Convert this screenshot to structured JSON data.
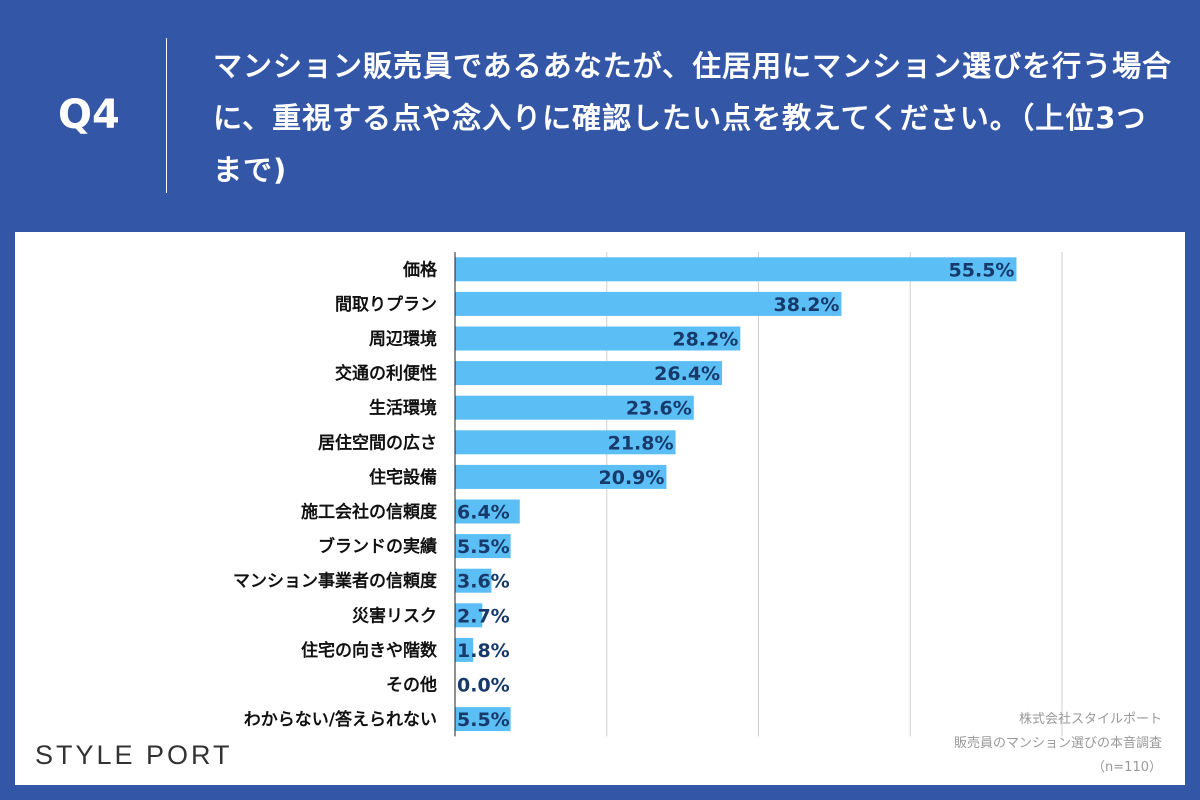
{
  "header": {
    "qnum": "Q4",
    "question": "マンション販売員であるあなたが、住居用にマンション選びを行う場合に、重視する点や念入りに確認したい点を教えてください。（上位3つまで)"
  },
  "colors": {
    "background": "#3356a7",
    "bar": "#5bbef5",
    "value_label": "#173a6b"
  },
  "chart_data": {
    "type": "bar",
    "orientation": "horizontal",
    "categories": [
      "価格",
      "間取りプラン",
      "周辺環境",
      "交通の利便性",
      "生活環境",
      "居住空間の広さ",
      "住宅設備",
      "施工会社の信頼度",
      "ブランドの実績",
      "マンション事業者の信頼度",
      "災害リスク",
      "住宅の向きや階数",
      "その他",
      "わからない/答えられない"
    ],
    "values": [
      55.5,
      38.2,
      28.2,
      26.4,
      23.6,
      21.8,
      20.9,
      6.4,
      5.5,
      3.6,
      2.7,
      1.8,
      0.0,
      5.5
    ],
    "value_labels": [
      "55.5%",
      "38.2%",
      "28.2%",
      "26.4%",
      "23.6%",
      "21.8%",
      "20.9%",
      "6.4%",
      "5.5%",
      "3.6%",
      "2.7%",
      "1.8%",
      "0.0%",
      "5.5%"
    ],
    "xlim": [
      0,
      60
    ],
    "grid": true,
    "gridlines": [
      15,
      30,
      45,
      60
    ]
  },
  "logo": "STYLE PORT",
  "credit": {
    "line1": "株式会社スタイルポート",
    "line2": "販売員のマンション選びの本音調査",
    "line3": "（n=110）"
  }
}
